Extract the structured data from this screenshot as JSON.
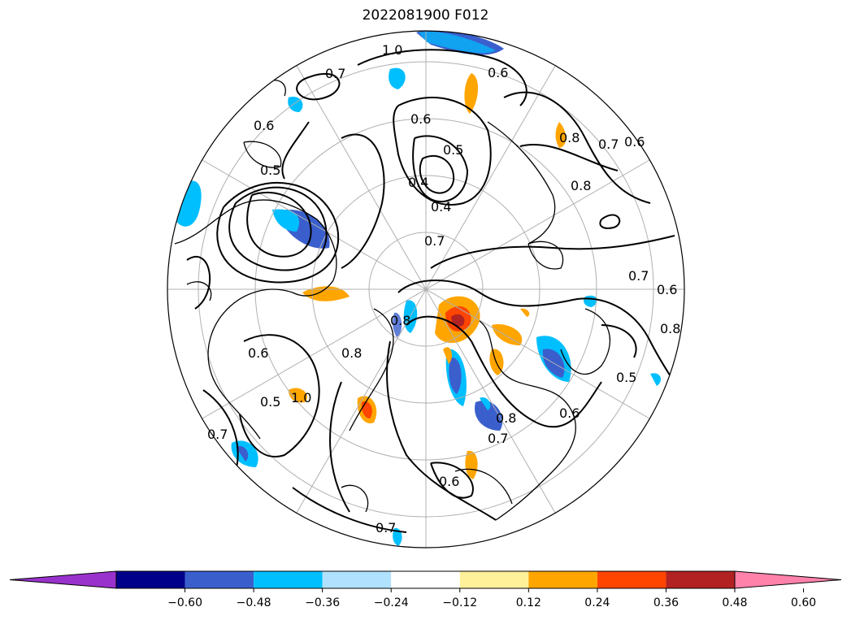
{
  "title": "2022081900 F012",
  "contour_labels": [
    "1.0",
    "0.7",
    "0.6",
    "0.5",
    "0.6",
    "0.5",
    "0.4",
    "0.4",
    "0.7",
    "0.8",
    "0.7",
    "0.6",
    "0.8",
    "0.7",
    "0.6",
    "0.8",
    "0.5",
    "0.6",
    "0.8",
    "0.7",
    "0.6",
    "0.8",
    "1.0",
    "0.7",
    "0.5",
    "0.6",
    "0.8",
    "0.7",
    "0.6"
  ],
  "colorbar": {
    "extend": "both",
    "colors": [
      "#9932cc",
      "#00008b",
      "#3a5fcd",
      "#00bfff",
      "#b0e2ff",
      "#ffffff",
      "#fff09a",
      "#ffa500",
      "#ff4500",
      "#b22222",
      "#ff82ab"
    ],
    "tick_labels": [
      "−0.60",
      "−0.48",
      "−0.36",
      "−0.24",
      "−0.12",
      "0.12",
      "0.24",
      "0.36",
      "0.48",
      "0.60"
    ]
  },
  "colors": {
    "contour": "#000000",
    "coastline": "#000000",
    "gridline": "#b0b0b0"
  }
}
